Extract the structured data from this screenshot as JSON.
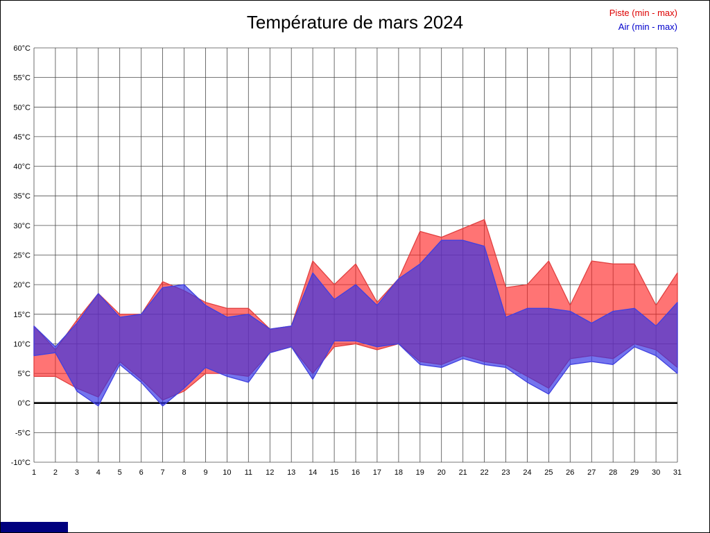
{
  "frame": {
    "border_color": "#000000",
    "background": "#ffffff"
  },
  "legend": [
    {
      "label": "Piste (min - max)",
      "color": "#dd0000"
    },
    {
      "label": "Air (min - max)",
      "color": "#0000cc"
    }
  ],
  "bottom_bar": {
    "color": "#00007e"
  },
  "chart_data": {
    "type": "area",
    "title": "Température de mars 2024",
    "xlabel": "",
    "ylabel": "°C",
    "ylim": [
      -10,
      60
    ],
    "grid": true,
    "zero_line": true,
    "zero_line_color": "#000000",
    "grid_color": "#4a4a4a",
    "x": [
      1,
      2,
      3,
      4,
      5,
      6,
      7,
      8,
      9,
      10,
      11,
      12,
      13,
      14,
      15,
      16,
      17,
      18,
      19,
      20,
      21,
      22,
      23,
      24,
      25,
      26,
      27,
      28,
      29,
      30,
      31
    ],
    "xtick_labels": [
      "1",
      "2",
      "3",
      "4",
      "5",
      "6",
      "7",
      "8",
      "9",
      "10",
      "11",
      "12",
      "13",
      "14",
      "15",
      "16",
      "17",
      "18",
      "19",
      "20",
      "21",
      "22",
      "23",
      "24",
      "25",
      "26",
      "27",
      "28",
      "29",
      "30",
      "31"
    ],
    "ytick_values": [
      60,
      55,
      50,
      45,
      40,
      35,
      30,
      25,
      20,
      15,
      10,
      5,
      0,
      -5,
      -10
    ],
    "ytick_labels": [
      "60°C",
      "55°C",
      "50°C",
      "45°C",
      "40°C",
      "35°C",
      "30°C",
      "25°C",
      "20°C",
      "15°C",
      "10°C",
      "5°C",
      "0°C",
      "-5°C",
      "-10°C"
    ],
    "legend_position": "top-right",
    "series": [
      {
        "id": "piste",
        "name": "Piste (min - max)",
        "fill": "rgba(255,30,30,0.62)",
        "stroke": "#e04040",
        "max": [
          13,
          9,
          14,
          18.5,
          15,
          15,
          20.5,
          19,
          17,
          16,
          16,
          12.5,
          13,
          24,
          20,
          23.5,
          17,
          21,
          29,
          28,
          29.5,
          31,
          19.5,
          20,
          24,
          16.5,
          24,
          23.5,
          23.5,
          16.5,
          22
        ],
        "min": [
          4.5,
          4.5,
          2.5,
          1,
          7,
          4,
          0.5,
          2,
          5,
          5,
          4.5,
          8.5,
          9.5,
          5,
          9.5,
          10,
          9,
          10,
          7,
          6.5,
          8,
          7,
          6.5,
          4.5,
          2.5,
          7.5,
          8,
          7.5,
          10,
          9,
          6
        ]
      },
      {
        "id": "air",
        "name": "Air (min - max)",
        "fill": "rgba(50,50,230,0.68)",
        "stroke": "#4040e0",
        "max": [
          13,
          9.5,
          13.5,
          18.5,
          14.5,
          15,
          19.5,
          20,
          16.5,
          14.5,
          15,
          12.5,
          13,
          22,
          17.5,
          20,
          16.5,
          21,
          23.5,
          27.5,
          27.5,
          26.5,
          14.5,
          16,
          16,
          15.5,
          13.5,
          15.5,
          16,
          13,
          17
        ],
        "min": [
          8,
          8.5,
          2,
          -0.5,
          6.5,
          3.5,
          -0.5,
          2.5,
          6,
          4.5,
          3.5,
          8.5,
          9.5,
          4,
          10.5,
          10.5,
          9.5,
          10,
          6.5,
          6,
          7.5,
          6.5,
          6,
          3.5,
          1.5,
          6.5,
          7,
          6.5,
          9.5,
          8,
          5
        ]
      }
    ]
  }
}
